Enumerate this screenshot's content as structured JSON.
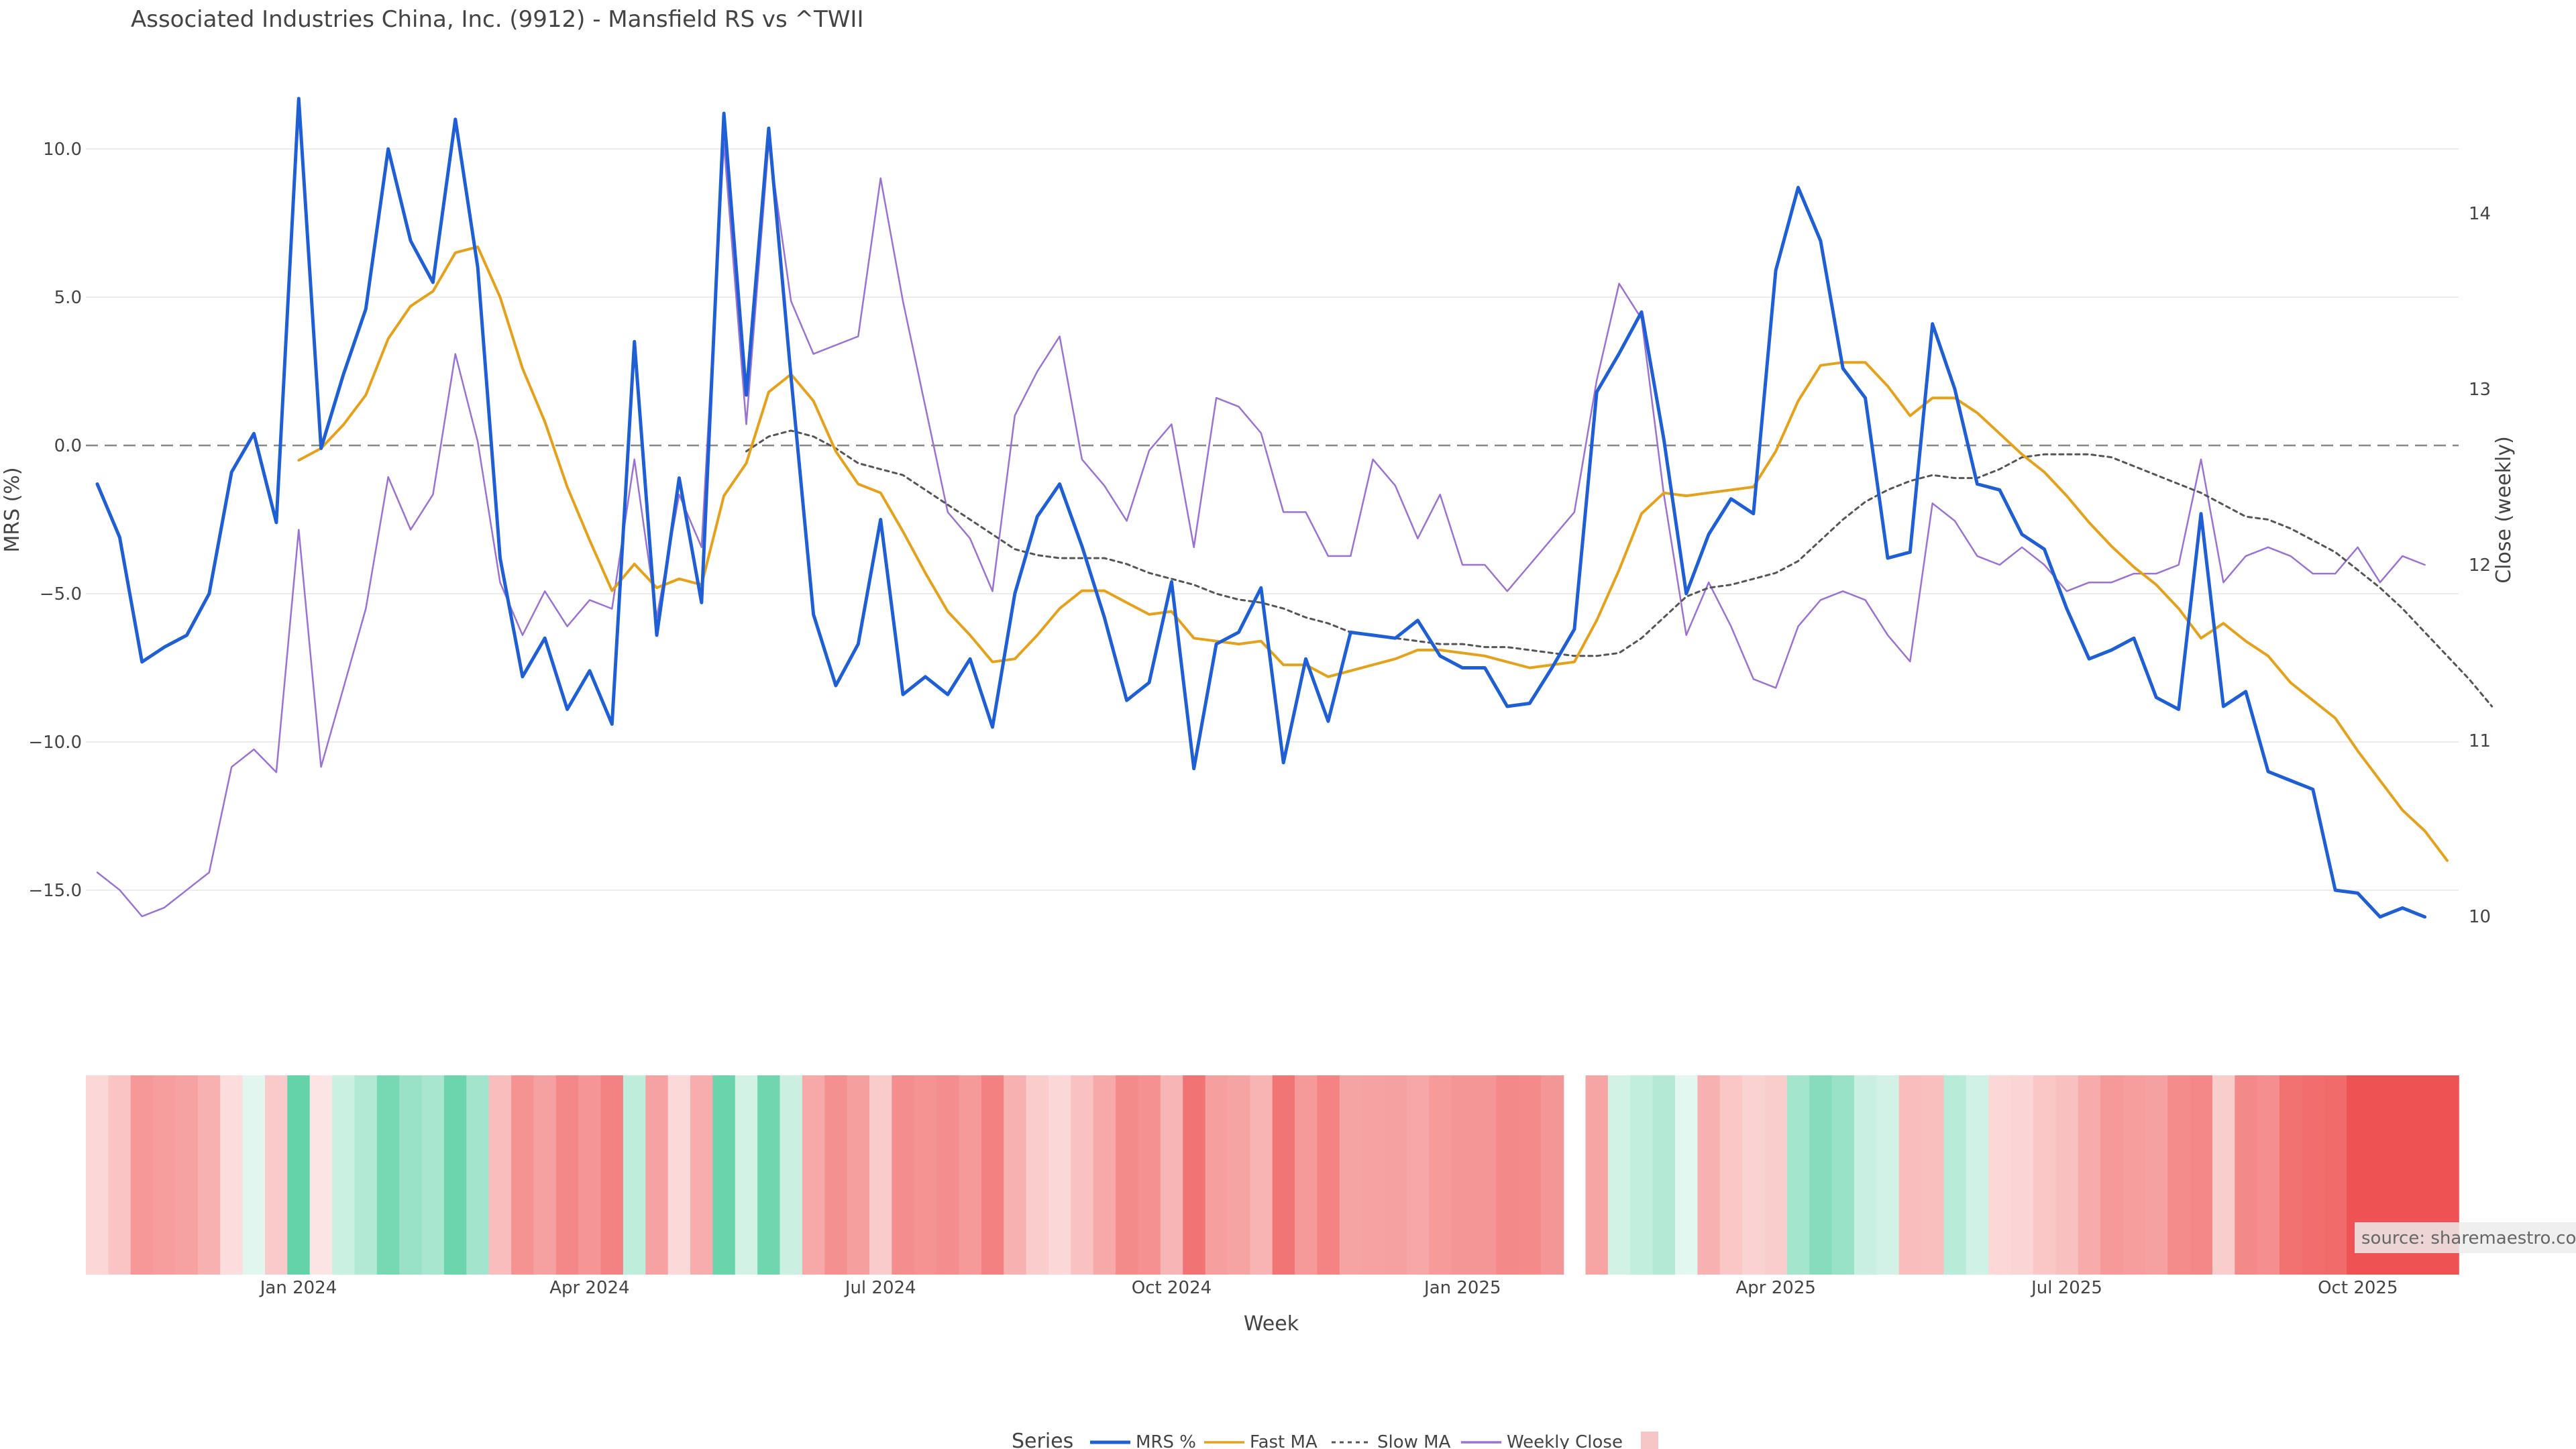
{
  "chart_data": {
    "type": "line",
    "title": "Associated Industries China, Inc. (9912) - Mansfield RS vs ^TWII",
    "xlabel": "Week",
    "ylabel_left": "MRS (%)",
    "ylabel_right": "Close (weekly)",
    "x_ticks": [
      "Jan 2024",
      "Apr 2024",
      "Jul 2024",
      "Oct 2024",
      "Jan 2025",
      "Apr 2025",
      "Jul 2025",
      "Oct 2025"
    ],
    "y_left_ticks": [
      "10.0",
      "5.0",
      "0.0",
      "−5.0",
      "−10.0",
      "−15.0"
    ],
    "y_left_tick_values": [
      10,
      5,
      0,
      -5,
      -10,
      -15
    ],
    "y_right_ticks": [
      "14",
      "13",
      "12",
      "11",
      "10"
    ],
    "y_right_tick_values": [
      14,
      13,
      12,
      11,
      10
    ],
    "ylim_left": [
      -16.5,
      12.2
    ],
    "ylim_right": [
      9.6,
      14.6
    ],
    "zero_line": 0,
    "week_count": 106,
    "gap_after_week": 65,
    "series": [
      {
        "name": "MRS %",
        "color": "#1f5fd6",
        "style": "solid",
        "values": [
          -1.3,
          -3.1,
          -7.3,
          -6.8,
          -6.4,
          -5.0,
          -0.9,
          0.4,
          -2.6,
          11.7,
          -0.1,
          2.4,
          4.6,
          10.0,
          6.9,
          5.5,
          11.0,
          6.0,
          -3.8,
          -7.8,
          -6.5,
          -8.9,
          -7.6,
          -9.4,
          3.5,
          -6.4,
          -1.1,
          -5.3,
          11.2,
          1.7,
          10.7,
          2.3,
          -5.7,
          -8.1,
          -6.7,
          -2.5,
          -8.4,
          -7.8,
          -8.4,
          -7.2,
          -9.5,
          -5.0,
          -2.4,
          -1.3,
          -3.4,
          -5.8,
          -8.6,
          -8.0,
          -4.6,
          -10.9,
          -6.7,
          -6.3,
          -4.8,
          -10.7,
          -7.2,
          -9.3,
          -6.3,
          -6.4,
          -6.5,
          -5.9,
          -7.1,
          -7.5,
          -7.5,
          -8.8,
          -8.7,
          -7.5,
          -6.2,
          1.8,
          3.1,
          4.5,
          0.2,
          -5.0,
          -3.0,
          -1.8,
          -2.3,
          5.9,
          8.7,
          6.9,
          2.6,
          1.6,
          -3.8,
          -3.6,
          4.1,
          1.9,
          -1.3,
          -1.5,
          -3.0,
          -3.5,
          -5.5,
          -7.2,
          -6.9,
          -6.5,
          -8.5,
          -8.9,
          -2.3,
          -8.8,
          -8.3,
          -11.0,
          -11.3,
          -11.6,
          -15.0,
          -15.1,
          -15.9,
          -15.6,
          -15.9
        ]
      },
      {
        "name": "Fast MA",
        "color": "#e6a11a",
        "style": "solid",
        "start": 9,
        "values": [
          -0.5,
          -0.1,
          0.7,
          1.7,
          3.6,
          4.7,
          5.2,
          6.5,
          6.7,
          5.0,
          2.6,
          0.8,
          -1.4,
          -3.2,
          -4.9,
          -4.0,
          -4.8,
          -4.5,
          -4.7,
          -1.7,
          -0.6,
          1.8,
          2.4,
          1.5,
          -0.2,
          -1.3,
          -1.6,
          -2.9,
          -4.3,
          -5.6,
          -6.4,
          -7.3,
          -7.2,
          -6.4,
          -5.5,
          -4.9,
          -4.9,
          -5.3,
          -5.7,
          -5.6,
          -6.5,
          -6.6,
          -6.7,
          -6.6,
          -7.4,
          -7.4,
          -7.8,
          -7.6,
          -7.4,
          -7.2,
          -6.9,
          -6.9,
          -7.0,
          -7.1,
          -7.3,
          -7.5,
          -7.4,
          -7.3,
          -5.9,
          -4.2,
          -2.3,
          -1.6,
          -1.7,
          -1.6,
          -1.5,
          -1.4,
          -0.2,
          1.5,
          2.7,
          2.8,
          2.8,
          2.0,
          1.0,
          1.6,
          1.6,
          1.1,
          0.4,
          -0.3,
          -0.9,
          -1.7,
          -2.6,
          -3.4,
          -4.1,
          -4.7,
          -5.5,
          -6.5,
          -6.0,
          -6.6,
          -7.1,
          -8.0,
          -8.6,
          -9.2,
          -10.3,
          -11.3,
          -12.3,
          -13.0,
          -14.0
        ]
      },
      {
        "name": "Slow MA",
        "color": "#555555",
        "style": "dotted",
        "start": 29,
        "values": [
          -0.2,
          0.3,
          0.5,
          0.3,
          -0.1,
          -0.6,
          -0.8,
          -1.0,
          -1.5,
          -2.0,
          -2.5,
          -3.0,
          -3.5,
          -3.7,
          -3.8,
          -3.8,
          -3.8,
          -4.0,
          -4.3,
          -4.5,
          -4.7,
          -5.0,
          -5.2,
          -5.3,
          -5.5,
          -5.8,
          -6.0,
          -6.3,
          -6.4,
          -6.5,
          -6.6,
          -6.7,
          -6.7,
          -6.8,
          -6.8,
          -6.9,
          -7.0,
          -7.1,
          -7.1,
          -7.0,
          -6.5,
          -5.8,
          -5.1,
          -4.8,
          -4.7,
          -4.5,
          -4.3,
          -3.9,
          -3.2,
          -2.5,
          -1.9,
          -1.5,
          -1.2,
          -1.0,
          -1.1,
          -1.1,
          -0.8,
          -0.4,
          -0.3,
          -0.3,
          -0.3,
          -0.4,
          -0.7,
          -1.0,
          -1.3,
          -1.6,
          -2.0,
          -2.4,
          -2.5,
          -2.8,
          -3.2,
          -3.6,
          -4.2,
          -4.8,
          -5.5,
          -6.3,
          -7.1,
          -7.9,
          -8.8
        ]
      },
      {
        "name": "Weekly Close",
        "color": "#9b72d4",
        "style": "solid",
        "axis": "right",
        "values": [
          10.25,
          10.15,
          10.0,
          10.05,
          10.15,
          10.25,
          10.85,
          10.95,
          10.82,
          12.2,
          10.85,
          11.3,
          11.75,
          12.5,
          12.2,
          12.4,
          13.2,
          12.7,
          11.9,
          11.6,
          11.85,
          11.65,
          11.8,
          11.75,
          12.6,
          11.7,
          12.4,
          12.1,
          14.4,
          12.8,
          14.4,
          13.5,
          13.2,
          13.25,
          13.3,
          14.2,
          13.5,
          12.9,
          12.3,
          12.15,
          11.85,
          12.85,
          13.1,
          13.3,
          12.6,
          12.45,
          12.25,
          12.65,
          12.8,
          12.1,
          12.95,
          12.9,
          12.75,
          12.3,
          12.3,
          12.05,
          12.05,
          12.6,
          12.45,
          12.15,
          12.4,
          12.0,
          12.0,
          11.85,
          12.0,
          12.15,
          12.3,
          13.05,
          13.6,
          13.4,
          12.4,
          11.6,
          11.9,
          11.65,
          11.35,
          11.3,
          11.65,
          11.8,
          11.85,
          11.8,
          11.6,
          11.45,
          12.35,
          12.25,
          12.05,
          12.0,
          12.1,
          12.0,
          11.85,
          11.9,
          11.9,
          11.95,
          11.95,
          12.0,
          12.6,
          11.9,
          12.05,
          12.1,
          12.05,
          11.95,
          11.95,
          12.1,
          11.9,
          12.05,
          12.0
        ]
      }
    ],
    "heatmap_values": [
      -1.3,
      -3.1,
      -7.3,
      -6.8,
      -6.4,
      -5.0,
      -0.9,
      0.4,
      -2.6,
      11.7,
      -0.1,
      2.4,
      4.6,
      10.0,
      6.9,
      5.5,
      11.0,
      6.0,
      -3.8,
      -7.8,
      -6.5,
      -8.9,
      -7.6,
      -9.4,
      3.5,
      -6.4,
      -1.1,
      -5.3,
      11.2,
      1.7,
      10.7,
      2.3,
      -5.7,
      -8.1,
      -6.7,
      -2.5,
      -8.4,
      -7.8,
      -8.4,
      -7.2,
      -9.5,
      -5.0,
      -2.4,
      -1.3,
      -3.4,
      -5.8,
      -8.6,
      -8.0,
      -4.6,
      -10.9,
      -6.7,
      -6.3,
      -4.8,
      -10.7,
      -7.2,
      -9.3,
      -6.3,
      -6.4,
      -6.5,
      -5.9,
      -7.1,
      -7.5,
      -7.5,
      -8.8,
      -8.7,
      -7.5,
      -6.2,
      1.8,
      3.1,
      4.5,
      0.2,
      -5.0,
      -3.0,
      -1.8,
      -2.3,
      5.9,
      8.7,
      6.9,
      2.6,
      1.6,
      -3.8,
      -3.6,
      4.1,
      1.9,
      -1.3,
      -1.5,
      -3.0,
      -3.5,
      -5.5,
      -7.2,
      -6.9,
      -6.5,
      -8.5,
      -8.9,
      -2.3,
      -8.8,
      -8.3,
      -11.0,
      -11.3,
      -11.6,
      -15.0,
      -15.1,
      -15.9,
      -15.6,
      -15.9
    ],
    "heatmap_colors": {
      "positive": "#4ccc9c",
      "negative": "#ef5252",
      "neutral": "#ffffff"
    },
    "legend": {
      "title": "Series",
      "entries": [
        "MRS %",
        "Fast MA",
        "Slow MA",
        "Weekly Close"
      ],
      "placement": "bottom-center",
      "swatch_color": "#f6c6c6"
    },
    "annotation": "source: sharemaestro.com",
    "grid": true
  }
}
